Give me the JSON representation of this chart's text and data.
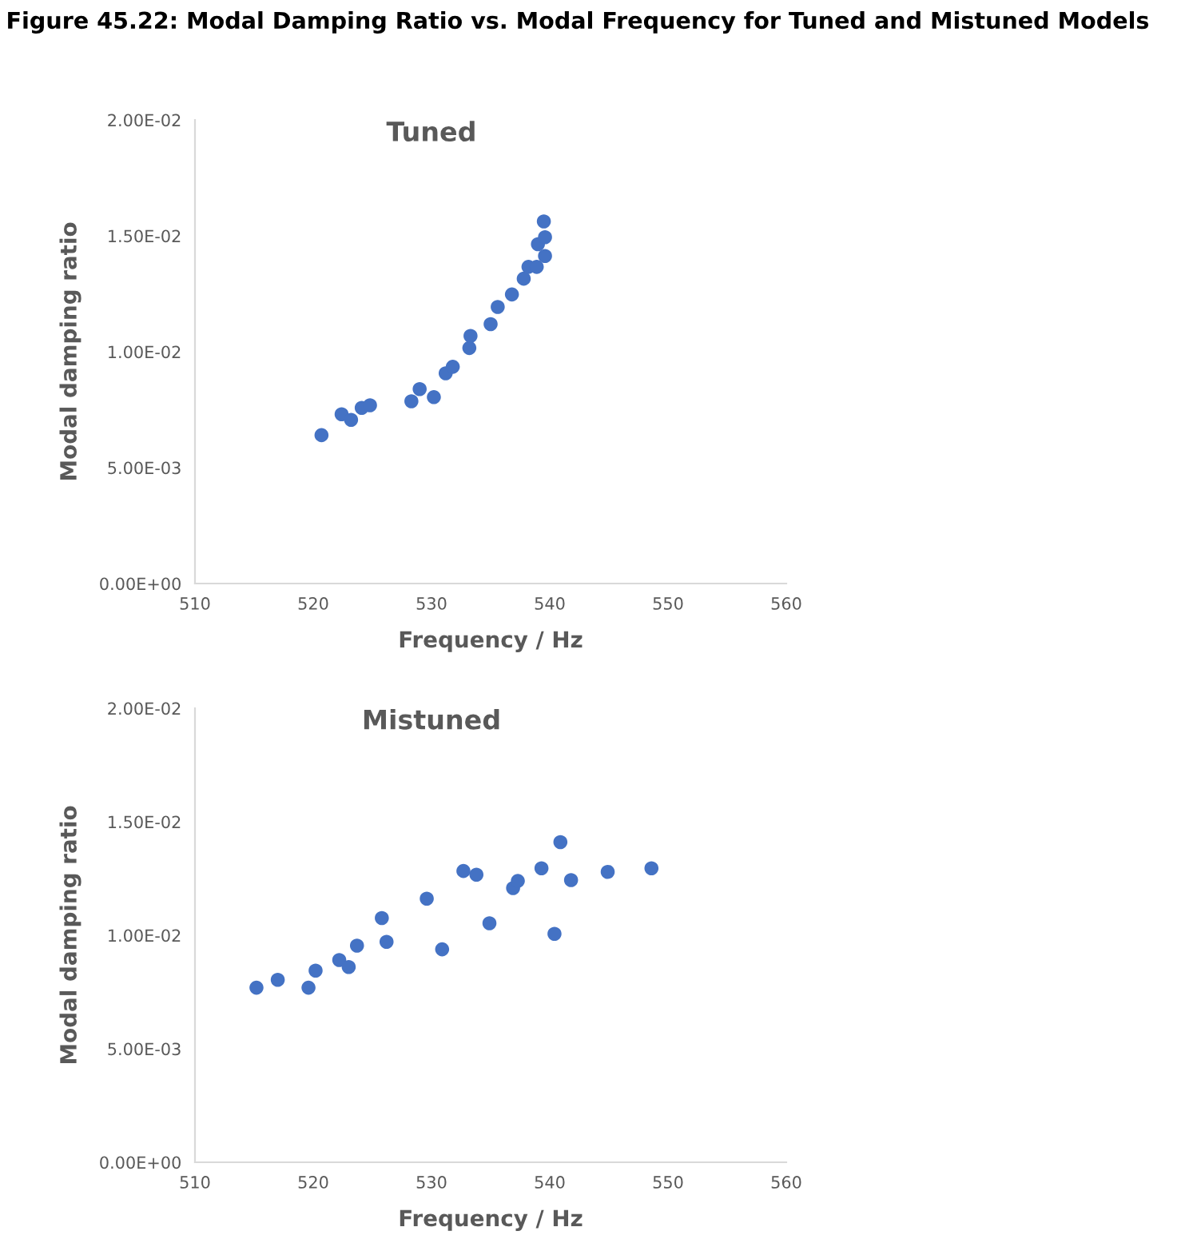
{
  "chart_data": [
    {
      "type": "scatter",
      "title": "Tuned",
      "annotations": [
        "Figure 45.22: Modal Damping Ratio vs. Modal Frequency for Tuned and Mistuned Models"
      ],
      "xlabel": "Frequency / Hz",
      "ylabel": "Modal damping ratio",
      "xlim": [
        510,
        560
      ],
      "xticks": [
        510,
        520,
        530,
        540,
        550,
        560
      ],
      "ylim": [
        0,
        0.02
      ],
      "yticks": [
        {
          "value": 0,
          "label": "0.00E+00"
        },
        {
          "value": 0.005,
          "label": "5.00E-03"
        },
        {
          "value": 0.01,
          "label": "1.00E-02"
        },
        {
          "value": 0.015,
          "label": "1.50E-02"
        },
        {
          "value": 0.02,
          "label": "2.00E-02"
        }
      ],
      "grid": false,
      "legend": false,
      "marker": "circle",
      "series": [
        {
          "color": "#4472c4",
          "x": [
            520.7,
            522.4,
            523.2,
            524.1,
            524.8,
            528.3,
            529.0,
            530.2,
            531.2,
            531.8,
            533.2,
            533.3,
            535.0,
            535.6,
            536.8,
            537.8,
            538.2,
            538.9,
            539.0,
            539.6,
            539.6,
            539.5
          ],
          "values": [
            0.0064,
            0.0073,
            0.00706,
            0.00758,
            0.00769,
            0.00786,
            0.00839,
            0.00804,
            0.00907,
            0.00935,
            0.01016,
            0.01068,
            0.01119,
            0.01193,
            0.01247,
            0.01315,
            0.01366,
            0.01366,
            0.01464,
            0.01494,
            0.01413,
            0.01562
          ]
        }
      ]
    },
    {
      "type": "scatter",
      "title": "Mistuned",
      "xlabel": "Frequency / Hz",
      "ylabel": "Modal damping ratio",
      "xlim": [
        510,
        560
      ],
      "xticks": [
        510,
        520,
        530,
        540,
        550,
        560
      ],
      "ylim": [
        0,
        0.02
      ],
      "yticks": [
        {
          "value": 0,
          "label": "0.00E+00"
        },
        {
          "value": 0.005,
          "label": "5.00E-03"
        },
        {
          "value": 0.01,
          "label": "1.00E-02"
        },
        {
          "value": 0.015,
          "label": "1.50E-02"
        },
        {
          "value": 0.02,
          "label": "2.00E-02"
        }
      ],
      "grid": false,
      "legend": false,
      "marker": "circle",
      "series": [
        {
          "color": "#4472c4",
          "x": [
            515.2,
            517.0,
            519.6,
            520.2,
            522.2,
            523.0,
            523.7,
            525.8,
            526.2,
            529.6,
            530.9,
            532.7,
            533.8,
            534.9,
            536.9,
            537.3,
            539.3,
            540.4,
            540.9,
            541.8,
            544.9,
            548.6
          ],
          "values": [
            0.00769,
            0.00804,
            0.00769,
            0.00844,
            0.00891,
            0.0086,
            0.00954,
            0.01076,
            0.00971,
            0.01161,
            0.00938,
            0.01283,
            0.01267,
            0.01053,
            0.01208,
            0.01239,
            0.01295,
            0.01006,
            0.0141,
            0.01243,
            0.01279,
            0.01295
          ]
        }
      ]
    }
  ]
}
